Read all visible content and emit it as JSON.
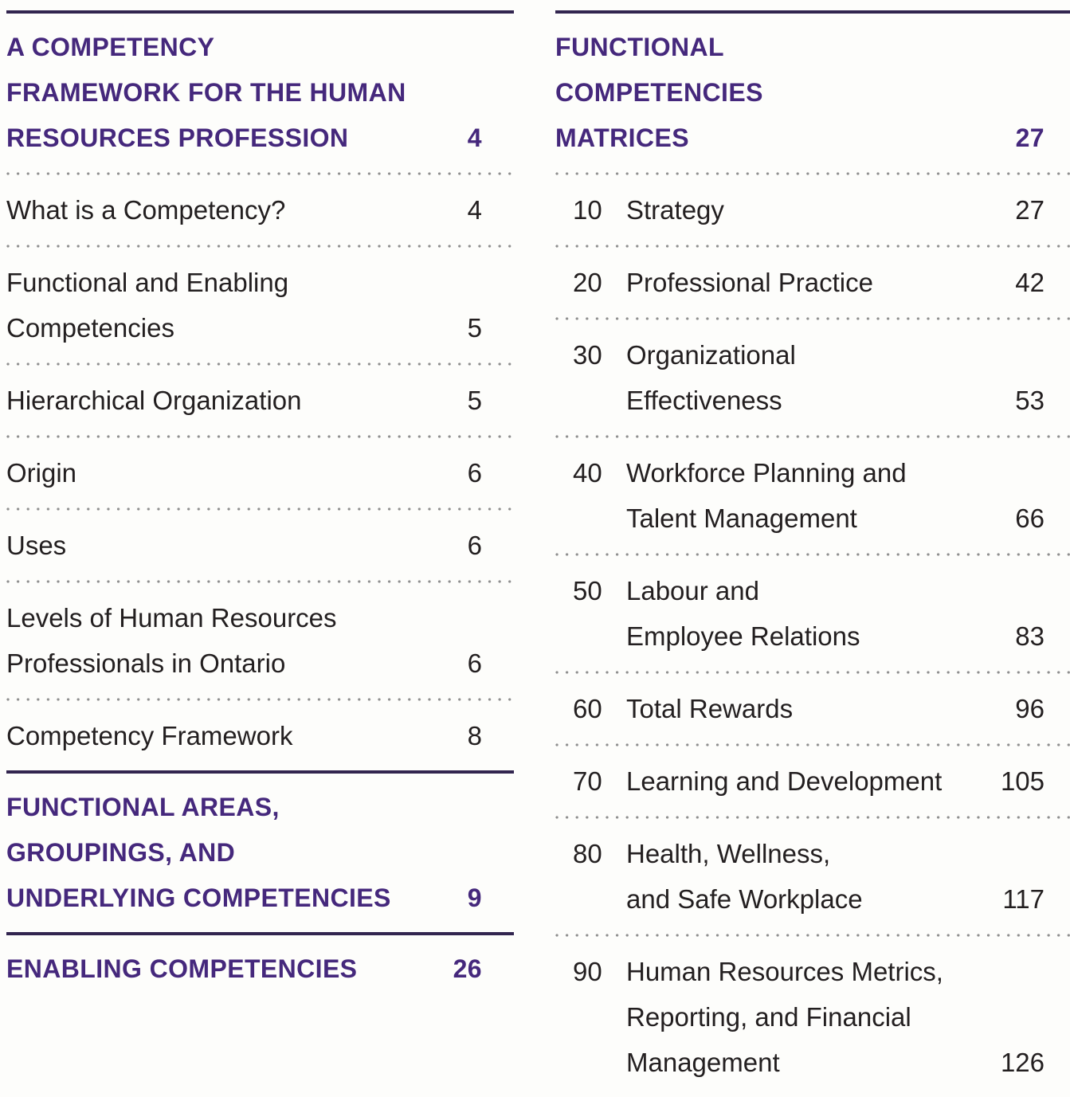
{
  "colors": {
    "accent_purple": "#45287c",
    "rule_purple": "#32254f",
    "body_text": "#231f20",
    "dot_gray": "#8f8f8f"
  },
  "left_column": {
    "heading1": {
      "lines": [
        "A COMPETENCY",
        "FRAMEWORK FOR THE HUMAN",
        "RESOURCES PROFESSION"
      ],
      "page": "4"
    },
    "entries": [
      {
        "lines": [
          "What is a Competency?"
        ],
        "page": "4"
      },
      {
        "lines": [
          "Functional and Enabling",
          "Competencies"
        ],
        "page": "5"
      },
      {
        "lines": [
          "Hierarchical Organization"
        ],
        "page": "5"
      },
      {
        "lines": [
          "Origin"
        ],
        "page": "6"
      },
      {
        "lines": [
          "Uses"
        ],
        "page": "6"
      },
      {
        "lines": [
          "Levels of Human Resources",
          "Professionals in Ontario"
        ],
        "page": "6"
      },
      {
        "lines": [
          "Competency Framework"
        ],
        "page": "8"
      }
    ],
    "heading2": {
      "lines": [
        "FUNCTIONAL AREAS,",
        "GROUPINGS, AND",
        "UNDERLYING COMPETENCIES"
      ],
      "page": "9"
    },
    "heading3": {
      "lines": [
        "ENABLING COMPETENCIES"
      ],
      "page": "26"
    }
  },
  "right_column": {
    "heading": {
      "lines": [
        "FUNCTIONAL",
        "COMPETENCIES",
        "MATRICES"
      ],
      "page": "27"
    },
    "entries": [
      {
        "num": "10",
        "lines": [
          "Strategy"
        ],
        "page": "27"
      },
      {
        "num": "20",
        "lines": [
          "Professional Practice"
        ],
        "page": "42"
      },
      {
        "num": "30",
        "lines": [
          "Organizational",
          "Effectiveness"
        ],
        "page": "53"
      },
      {
        "num": "40",
        "lines": [
          "Workforce Planning and",
          "Talent Management"
        ],
        "page": "66"
      },
      {
        "num": "50",
        "lines": [
          "Labour and",
          "Employee Relations"
        ],
        "page": "83"
      },
      {
        "num": "60",
        "lines": [
          "Total Rewards"
        ],
        "page": "96"
      },
      {
        "num": "70",
        "lines": [
          "Learning and Development"
        ],
        "page": "105"
      },
      {
        "num": "80",
        "lines": [
          "Health, Wellness,",
          "and Safe Workplace"
        ],
        "page": "117"
      },
      {
        "num": "90",
        "lines": [
          "Human Resources Metrics,",
          "Reporting, and Financial",
          "Management"
        ],
        "page": "126"
      }
    ]
  }
}
